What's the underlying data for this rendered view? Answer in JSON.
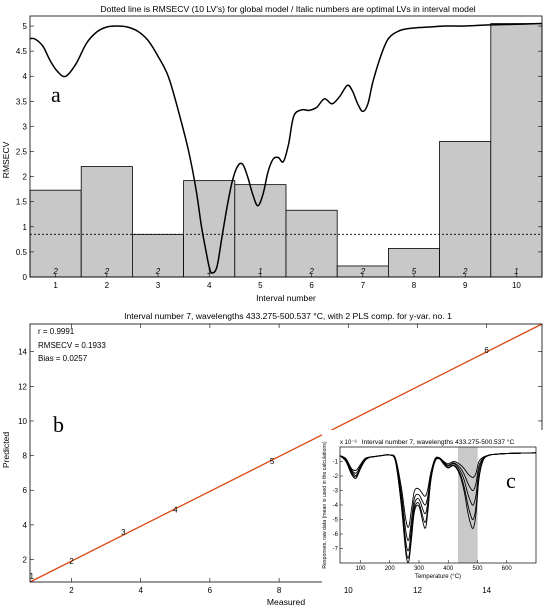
{
  "chart_data": [
    {
      "type": "bar",
      "panel_label": "a",
      "title": "Dotted line is RMSECV (10 LV's) for global model / Italic numbers are optimal LVs in interval model",
      "xlabel": "Interval number",
      "ylabel": "RMSECV",
      "categories": [
        "1",
        "2",
        "3",
        "4",
        "5",
        "6",
        "7",
        "8",
        "9",
        "10"
      ],
      "values": [
        1.73,
        2.2,
        0.85,
        1.92,
        1.84,
        1.33,
        0.22,
        0.57,
        2.7,
        5.05
      ],
      "optimal_lvs": [
        "2",
        "2",
        "2",
        "1",
        "1",
        "2",
        "2",
        "5",
        "2",
        "1"
      ],
      "global_rmsecv": 0.85,
      "ylim": [
        0,
        5.2
      ],
      "yticks": [
        0,
        0.5,
        1,
        1.5,
        2,
        2.5,
        3,
        3.5,
        4,
        4.5,
        5
      ],
      "spectrum_line": {
        "x": [
          0.5,
          0.6,
          0.75,
          0.9,
          1.05,
          1.2,
          1.4,
          1.6,
          1.8,
          2.0,
          2.2,
          2.4,
          2.6,
          2.8,
          3.0,
          3.2,
          3.4,
          3.6,
          3.75,
          3.85,
          3.95,
          4.0,
          4.05,
          4.15,
          4.25,
          4.35,
          4.45,
          4.55,
          4.65,
          4.75,
          4.85,
          4.95,
          5.05,
          5.15,
          5.25,
          5.35,
          5.45,
          5.55,
          5.65,
          5.8,
          5.95,
          6.1,
          6.25,
          6.4,
          6.55,
          6.7,
          6.8,
          6.9,
          7.0,
          7.1,
          7.2,
          7.35,
          7.5,
          7.7,
          7.9,
          8.1,
          8.3,
          8.6,
          9.0,
          9.4,
          9.8,
          10.2,
          10.5
        ],
        "y": [
          4.75,
          4.74,
          4.6,
          4.3,
          4.08,
          4.0,
          4.25,
          4.65,
          4.88,
          4.98,
          5.0,
          4.98,
          4.9,
          4.72,
          4.4,
          4.0,
          3.3,
          2.5,
          1.7,
          1.0,
          0.45,
          0.2,
          0.08,
          0.2,
          0.8,
          1.4,
          1.9,
          2.2,
          2.25,
          2.0,
          1.65,
          1.42,
          1.65,
          2.1,
          2.35,
          2.38,
          2.3,
          2.65,
          3.2,
          3.33,
          3.32,
          3.38,
          3.55,
          3.45,
          3.6,
          3.82,
          3.7,
          3.45,
          3.3,
          3.45,
          3.9,
          4.4,
          4.75,
          4.9,
          4.95,
          4.97,
          4.98,
          5.0,
          5.0,
          5.02,
          5.03,
          5.04,
          5.05
        ]
      }
    },
    {
      "type": "line",
      "panel_label": "b",
      "title": "Interval number 7, wavelengths 433.275-500.537 °C, with 2 PLS comp. for y-var. no. 1",
      "xlabel": "Measured",
      "ylabel": "Predicted",
      "xlim": [
        0.8,
        15.6
      ],
      "ylim": [
        0.7,
        15.6
      ],
      "xticks": [
        2,
        4,
        6,
        8,
        10,
        12,
        14
      ],
      "yticks": [
        2,
        4,
        6,
        8,
        10,
        12,
        14
      ],
      "series": [
        {
          "x": [
            0.8,
            15.6
          ],
          "y": [
            0.7,
            15.6
          ],
          "color": "#dd4b15"
        }
      ],
      "points": [
        {
          "label": "1",
          "x": 0.85,
          "y": 1.05
        },
        {
          "label": "2",
          "x": 2.0,
          "y": 1.9
        },
        {
          "label": "3",
          "x": 3.5,
          "y": 3.6
        },
        {
          "label": "4",
          "x": 5.0,
          "y": 4.9
        },
        {
          "label": "5",
          "x": 7.8,
          "y": 7.7
        },
        {
          "label": "6",
          "x": 14.0,
          "y": 14.1
        }
      ],
      "stats": [
        "r = 0.9991",
        "RMSECV = 0.1933",
        "Bias = 0.0257"
      ]
    },
    {
      "type": "line",
      "panel_label": "c",
      "title": "Interval number 7, wavelengths 433.275-500.537 °C",
      "xlabel": "Temperature (°C)",
      "ylabel": "Responses, raw data (mean is used in the calculations)",
      "exponent_label": "x 10⁻³",
      "xlim": [
        30,
        700
      ],
      "ylim": [
        -8,
        0
      ],
      "xticks": [
        100,
        200,
        300,
        400,
        500,
        600
      ],
      "yticks": [
        -7,
        -6,
        -5,
        -4,
        -3,
        -2,
        -1
      ],
      "highlight_interval": [
        433.275,
        500.537
      ],
      "x": [
        30,
        50,
        70,
        85,
        100,
        115,
        130,
        150,
        170,
        200,
        220,
        240,
        255,
        265,
        275,
        285,
        300,
        320,
        330,
        340,
        355,
        370,
        385,
        400,
        420,
        440,
        455,
        465,
        475,
        485,
        495,
        505,
        520,
        540,
        560,
        600,
        650,
        700
      ],
      "series": [
        {
          "values": [
            -0.6,
            -0.8,
            -1.5,
            -1.6,
            -1.2,
            -0.8,
            -0.7,
            -0.65,
            -0.6,
            -0.55,
            -0.8,
            -2.8,
            -5.0,
            -5.5,
            -4.2,
            -3.0,
            -2.9,
            -3.4,
            -2.9,
            -1.8,
            -0.8,
            -0.75,
            -1.0,
            -1.15,
            -1.0,
            -1.2,
            -1.5,
            -1.8,
            -2.0,
            -2.1,
            -1.8,
            -1.0,
            -0.7,
            -0.55,
            -0.5,
            -0.45,
            -0.42,
            -0.4
          ]
        },
        {
          "values": [
            -0.6,
            -0.85,
            -1.6,
            -1.8,
            -1.3,
            -0.85,
            -0.7,
            -0.65,
            -0.6,
            -0.55,
            -0.9,
            -3.2,
            -5.8,
            -6.4,
            -4.9,
            -3.5,
            -3.3,
            -4.0,
            -3.4,
            -2.0,
            -0.85,
            -0.75,
            -1.05,
            -1.25,
            -1.1,
            -1.4,
            -1.9,
            -2.4,
            -2.8,
            -3.0,
            -2.5,
            -1.3,
            -0.75,
            -0.55,
            -0.5,
            -0.45,
            -0.42,
            -0.4
          ]
        },
        {
          "values": [
            -0.6,
            -0.9,
            -1.7,
            -1.95,
            -1.4,
            -0.9,
            -0.72,
            -0.65,
            -0.6,
            -0.55,
            -0.95,
            -3.6,
            -6.5,
            -7.1,
            -5.4,
            -3.9,
            -3.6,
            -4.6,
            -3.8,
            -2.1,
            -0.9,
            -0.78,
            -1.1,
            -1.3,
            -1.15,
            -1.6,
            -2.3,
            -3.1,
            -3.7,
            -4.0,
            -3.3,
            -1.6,
            -0.8,
            -0.56,
            -0.5,
            -0.45,
            -0.42,
            -0.4
          ]
        },
        {
          "values": [
            -0.6,
            -0.95,
            -1.8,
            -2.05,
            -1.45,
            -0.92,
            -0.72,
            -0.66,
            -0.6,
            -0.55,
            -1.0,
            -3.9,
            -7.0,
            -7.6,
            -5.9,
            -4.2,
            -3.9,
            -5.2,
            -4.2,
            -2.3,
            -0.95,
            -0.8,
            -1.15,
            -1.4,
            -1.25,
            -1.8,
            -2.8,
            -3.8,
            -4.6,
            -5.0,
            -4.1,
            -2.0,
            -0.85,
            -0.57,
            -0.5,
            -0.45,
            -0.42,
            -0.4
          ]
        },
        {
          "values": [
            -0.6,
            -1.0,
            -1.9,
            -2.15,
            -1.5,
            -0.95,
            -0.73,
            -0.66,
            -0.6,
            -0.55,
            -1.05,
            -4.1,
            -7.3,
            -7.9,
            -6.2,
            -4.4,
            -4.1,
            -5.6,
            -4.5,
            -2.4,
            -1.0,
            -0.82,
            -1.2,
            -1.45,
            -1.3,
            -1.95,
            -3.1,
            -4.3,
            -5.2,
            -5.6,
            -4.6,
            -2.2,
            -0.9,
            -0.58,
            -0.5,
            -0.45,
            -0.42,
            -0.4
          ]
        }
      ]
    }
  ]
}
